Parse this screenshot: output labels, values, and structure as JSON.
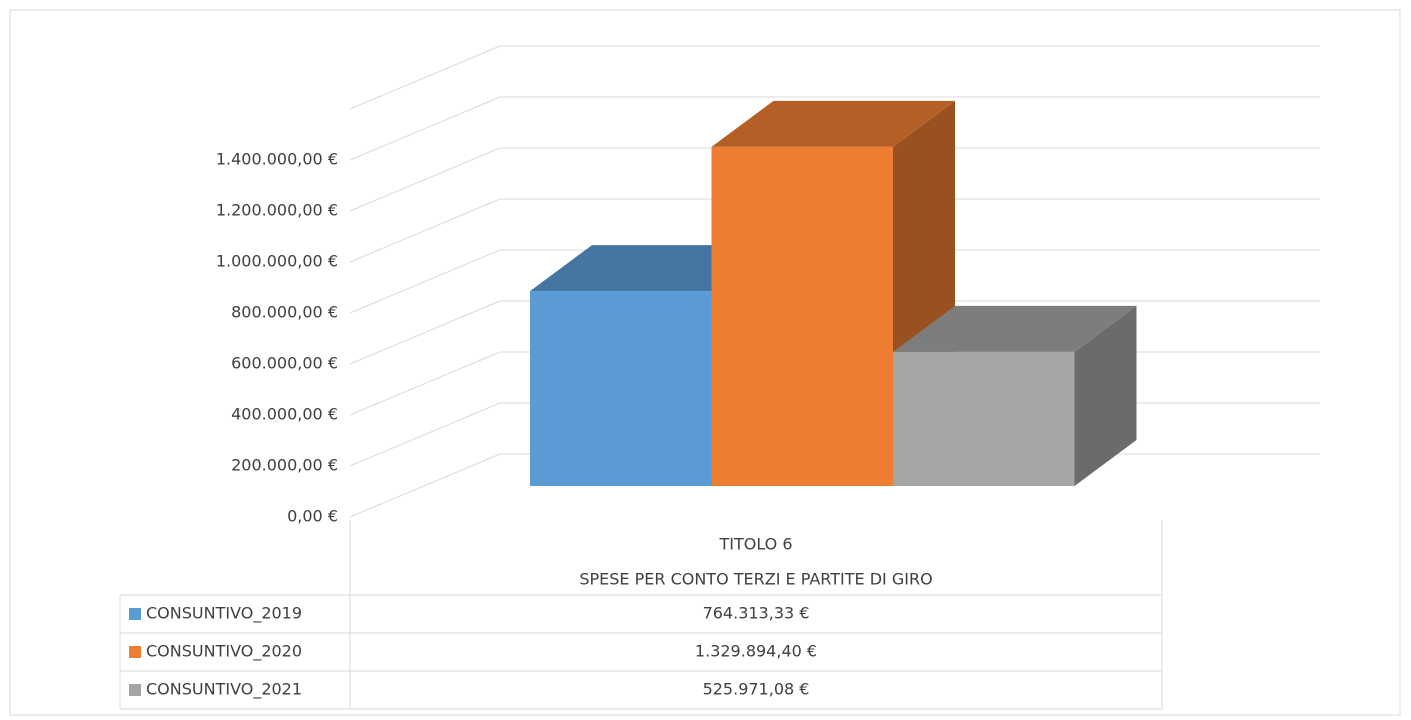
{
  "chart_data": {
    "type": "bar3d",
    "categories": [
      [
        "TITOLO 6",
        "SPESE PER CONTO TERZI E PARTITE DI GIRO"
      ]
    ],
    "series": [
      {
        "name": "CONSUNTIVO_2019",
        "color": "#5b9bd5",
        "values": [
          764313.33
        ],
        "value_labels": [
          "764.313,33 €"
        ]
      },
      {
        "name": "CONSUNTIVO_2020",
        "color": "#ed7d31",
        "values": [
          1329894.4
        ],
        "value_labels": [
          "1.329.894,40 €"
        ]
      },
      {
        "name": "CONSUNTIVO_2021",
        "color": "#a5a5a5",
        "values": [
          525971.08
        ],
        "value_labels": [
          "525.971,08 €"
        ]
      }
    ],
    "ylim": [
      0,
      1600000
    ],
    "yticks": [
      {
        "value": 0,
        "label": "0,00 €"
      },
      {
        "value": 200000,
        "label": "200.000,00 €"
      },
      {
        "value": 400000,
        "label": "400.000,00 €"
      },
      {
        "value": 600000,
        "label": "600.000,00 €"
      },
      {
        "value": 800000,
        "label": "800.000,00 €"
      },
      {
        "value": 1000000,
        "label": "1.000.000,00 €"
      },
      {
        "value": 1200000,
        "label": "1.200.000,00 €"
      },
      {
        "value": 1400000,
        "label": "1.400.000,00 €"
      }
    ],
    "grid": true,
    "data_table": true
  }
}
